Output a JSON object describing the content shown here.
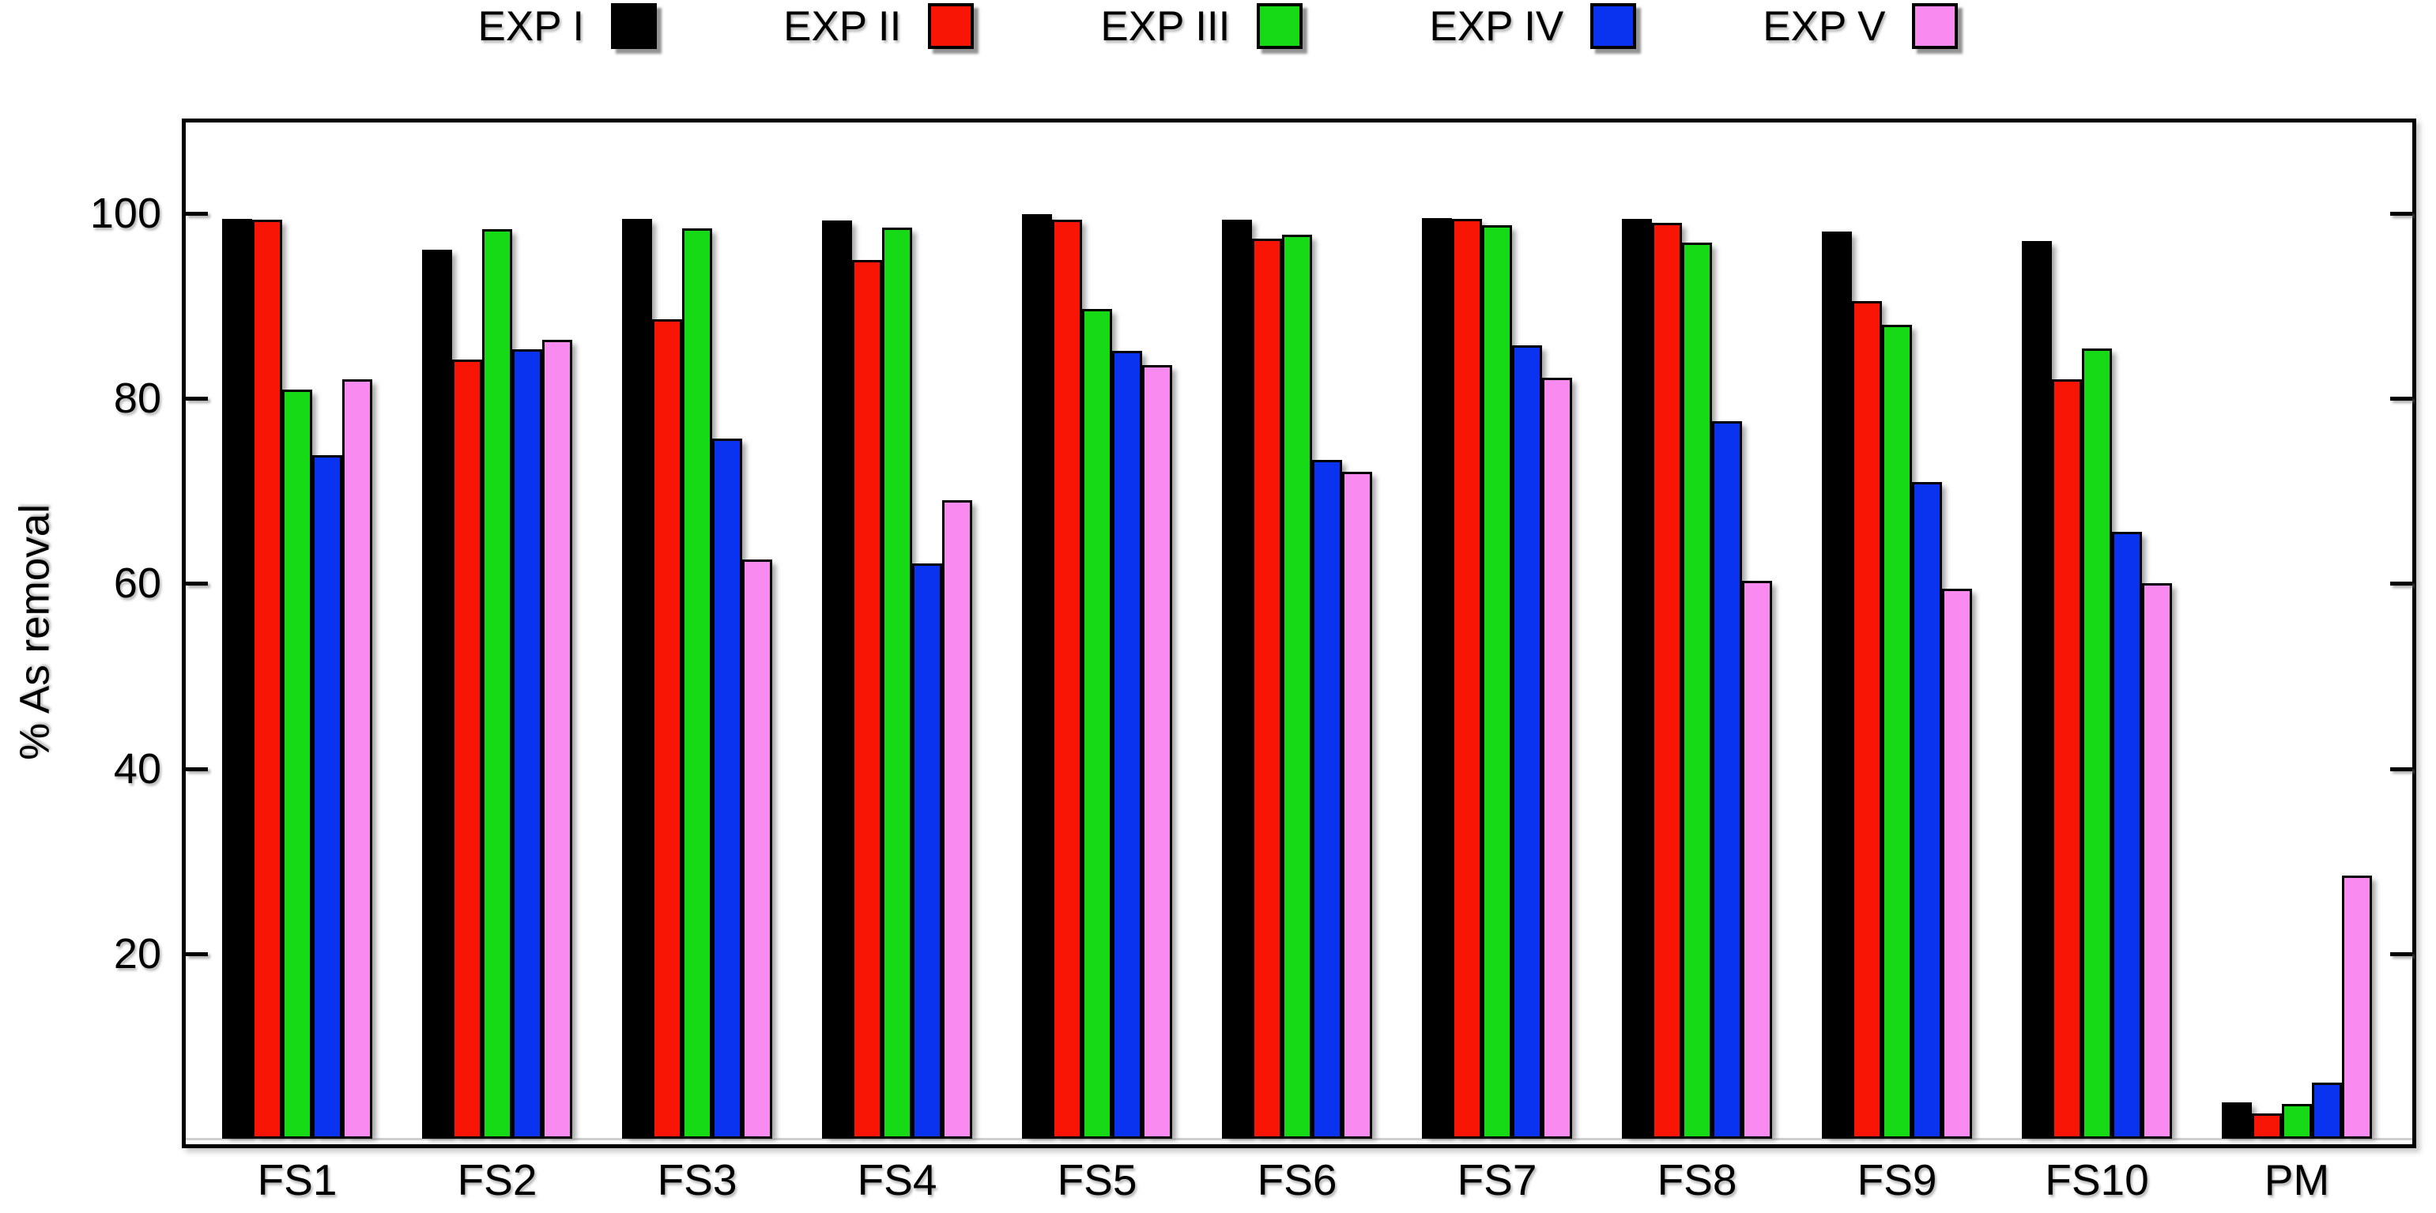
{
  "chart_data": {
    "type": "bar",
    "title": "",
    "xlabel": "",
    "ylabel": "% As removal",
    "categories": [
      "FS1",
      "FS2",
      "FS3",
      "FS4",
      "FS5",
      "FS6",
      "FS7",
      "FS8",
      "FS9",
      "FS10",
      "PM"
    ],
    "series": [
      {
        "name": "EXP I",
        "color": "#000000",
        "values": [
          99.4,
          96.1,
          99.4,
          99.2,
          99.9,
          99.3,
          99.5,
          99.4,
          98.0,
          97.0,
          3.9
        ]
      },
      {
        "name": "EXP II",
        "color": "#f91505",
        "values": [
          99.3,
          84.2,
          88.6,
          95.0,
          99.3,
          97.3,
          99.4,
          99.0,
          90.5,
          82.1,
          2.7
        ]
      },
      {
        "name": "EXP III",
        "color": "#15da15",
        "values": [
          81.0,
          98.3,
          98.4,
          98.5,
          89.7,
          97.7,
          98.7,
          96.8,
          88.0,
          85.4,
          3.8
        ]
      },
      {
        "name": "EXP IV",
        "color": "#0a33f0",
        "values": [
          73.9,
          85.3,
          75.7,
          62.2,
          85.1,
          73.4,
          85.7,
          77.5,
          71.0,
          65.6,
          6.1
        ]
      },
      {
        "name": "EXP V",
        "color": "#f98af0",
        "values": [
          82.1,
          86.3,
          62.6,
          69.0,
          83.6,
          72.1,
          82.2,
          60.3,
          59.4,
          60.0,
          28.4
        ]
      }
    ],
    "yticks": [
      20,
      40,
      60,
      80,
      100
    ],
    "ylim": [
      -1,
      110
    ],
    "legend_position": "top",
    "grid": false
  },
  "colors": {
    "background": "#ffffff",
    "frame": "#000000",
    "baseline_line": "#cfcfcf"
  }
}
